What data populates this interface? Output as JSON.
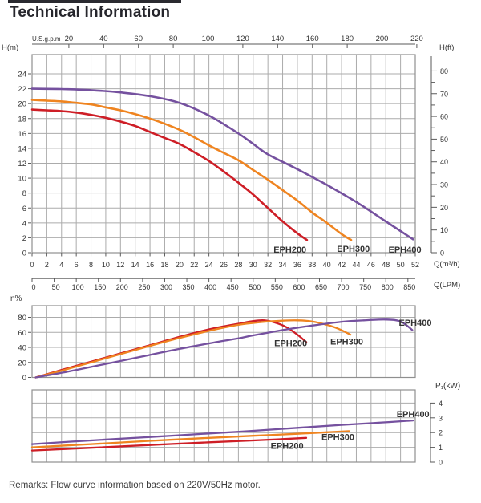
{
  "title": "Technical Information",
  "remarks": "Remarks: Flow curve information based on 220V/50Hz motor.",
  "colors": {
    "eph200": "#ce1e26",
    "eph300": "#ef8420",
    "eph400": "#75519f",
    "grid": "#ababab",
    "border": "#8f8f8f",
    "axis": "#5a5a5a",
    "text": "#333333"
  },
  "chart_data": [
    {
      "id": "head",
      "type": "line",
      "x_axis_top": {
        "label": "U.S.g.p.m",
        "ticks": [
          20,
          40,
          60,
          80,
          100,
          120,
          140,
          160,
          180,
          200,
          220
        ]
      },
      "x_axis_bottom": {
        "label": "Q(m³/h)",
        "min": 0,
        "max": 52,
        "step": 2
      },
      "x_axis_lpm": {
        "label": "Q(LPM)",
        "min": 0,
        "max": 850,
        "step": 50
      },
      "y_axis_left": {
        "label": "H(m)",
        "min": 0,
        "max": 24,
        "step": 2
      },
      "y_axis_right": {
        "label": "H(ft)",
        "min": 0,
        "max": 80,
        "step": 10,
        "minor_step": 5
      },
      "series": [
        {
          "name": "EPH200",
          "color": "eph200",
          "label_at": [
            35.0,
            0.45
          ],
          "points": [
            [
              0,
              19.2
            ],
            [
              2,
              19.1
            ],
            [
              4,
              19.0
            ],
            [
              6,
              18.8
            ],
            [
              8,
              18.5
            ],
            [
              10,
              18.1
            ],
            [
              12,
              17.6
            ],
            [
              14,
              17.0
            ],
            [
              16,
              16.2
            ],
            [
              18,
              15.4
            ],
            [
              20,
              14.6
            ],
            [
              22,
              13.5
            ],
            [
              24,
              12.3
            ],
            [
              26,
              10.9
            ],
            [
              28,
              9.4
            ],
            [
              30,
              7.8
            ],
            [
              32,
              6.0
            ],
            [
              34,
              4.2
            ],
            [
              36,
              2.6
            ],
            [
              37.3,
              1.7
            ]
          ]
        },
        {
          "name": "EPH300",
          "color": "eph300",
          "label_at": [
            43.6,
            0.55
          ],
          "points": [
            [
              0,
              20.5
            ],
            [
              2,
              20.4
            ],
            [
              4,
              20.3
            ],
            [
              6,
              20.1
            ],
            [
              8,
              19.9
            ],
            [
              10,
              19.5
            ],
            [
              12,
              19.1
            ],
            [
              14,
              18.6
            ],
            [
              16,
              18.0
            ],
            [
              18,
              17.3
            ],
            [
              20,
              16.5
            ],
            [
              22,
              15.5
            ],
            [
              24,
              14.4
            ],
            [
              26,
              13.4
            ],
            [
              28,
              12.4
            ],
            [
              30,
              11.1
            ],
            [
              32,
              9.8
            ],
            [
              34,
              8.4
            ],
            [
              36,
              7.0
            ],
            [
              38,
              5.4
            ],
            [
              40,
              4.0
            ],
            [
              42,
              2.5
            ],
            [
              43.3,
              1.7
            ]
          ]
        },
        {
          "name": "EPH400",
          "color": "eph400",
          "label_at": [
            50.6,
            0.45
          ],
          "points": [
            [
              0,
              22.0
            ],
            [
              4,
              21.95
            ],
            [
              8,
              21.8
            ],
            [
              12,
              21.5
            ],
            [
              16,
              21.0
            ],
            [
              20,
              20.1
            ],
            [
              24,
              18.4
            ],
            [
              28,
              16.0
            ],
            [
              30,
              14.6
            ],
            [
              32,
              13.2
            ],
            [
              36,
              11.2
            ],
            [
              40,
              9.1
            ],
            [
              44,
              6.8
            ],
            [
              48,
              4.2
            ],
            [
              51.7,
              1.8
            ]
          ]
        }
      ]
    },
    {
      "id": "eta",
      "type": "line",
      "y_axis_left": {
        "label": "η%",
        "min": 0,
        "max": 80,
        "step": 20
      },
      "series": [
        {
          "name": "EPH200",
          "color": "eph200",
          "label_at": [
            35.1,
            46
          ],
          "points": [
            [
              0.5,
              0
            ],
            [
              4,
              10
            ],
            [
              8,
              21
            ],
            [
              12,
              32
            ],
            [
              16,
              43
            ],
            [
              20,
              54
            ],
            [
              24,
              64
            ],
            [
              26,
              68
            ],
            [
              28,
              71.5
            ],
            [
              30,
              75
            ],
            [
              31.5,
              76
            ],
            [
              33,
              73
            ],
            [
              34.5,
              67
            ],
            [
              36,
              57
            ],
            [
              37.2,
              47
            ]
          ]
        },
        {
          "name": "EPH300",
          "color": "eph300",
          "label_at": [
            42.7,
            48
          ],
          "points": [
            [
              0.5,
              0
            ],
            [
              4,
              9
            ],
            [
              8,
              20
            ],
            [
              12,
              31
            ],
            [
              16,
              42
            ],
            [
              20,
              52.5
            ],
            [
              24,
              62
            ],
            [
              28,
              70
            ],
            [
              31,
              73.5
            ],
            [
              34,
              75.5
            ],
            [
              36,
              76
            ],
            [
              38,
              74.5
            ],
            [
              40,
              70
            ],
            [
              41.5,
              65
            ],
            [
              43.2,
              57
            ]
          ]
        },
        {
          "name": "EPH400",
          "color": "eph400",
          "label_at": [
            52,
            73
          ],
          "points": [
            [
              0.5,
              0
            ],
            [
              5,
              8
            ],
            [
              10,
              18
            ],
            [
              15,
              28
            ],
            [
              20,
              38
            ],
            [
              25,
              47
            ],
            [
              28,
              52
            ],
            [
              30,
              56
            ],
            [
              34,
              63
            ],
            [
              38,
              69
            ],
            [
              42,
              74
            ],
            [
              45,
              76
            ],
            [
              48,
              77
            ],
            [
              50,
              74.5
            ],
            [
              51.6,
              63
            ]
          ]
        }
      ]
    },
    {
      "id": "power",
      "type": "line",
      "y_axis_right": {
        "label": "P₁(kW)",
        "min": 0,
        "max": 4,
        "step": 1
      },
      "series": [
        {
          "name": "EPH200",
          "color": "eph200",
          "label_at": [
            34.6,
            1.12
          ],
          "points": [
            [
              0,
              0.78
            ],
            [
              8,
              0.97
            ],
            [
              16,
              1.16
            ],
            [
              24,
              1.34
            ],
            [
              30,
              1.47
            ],
            [
              34,
              1.56
            ],
            [
              37.2,
              1.64
            ]
          ]
        },
        {
          "name": "EPH300",
          "color": "eph300",
          "label_at": [
            41.5,
            1.72
          ],
          "points": [
            [
              0,
              1.0
            ],
            [
              8,
              1.22
            ],
            [
              16,
              1.44
            ],
            [
              24,
              1.64
            ],
            [
              30,
              1.78
            ],
            [
              36,
              1.92
            ],
            [
              40,
              2.02
            ],
            [
              43,
              2.1
            ]
          ]
        },
        {
          "name": "EPH400",
          "color": "eph400",
          "label_at": [
            51.7,
            3.25
          ],
          "points": [
            [
              0,
              1.22
            ],
            [
              8,
              1.47
            ],
            [
              16,
              1.7
            ],
            [
              24,
              1.94
            ],
            [
              30,
              2.12
            ],
            [
              36,
              2.32
            ],
            [
              42,
              2.52
            ],
            [
              47,
              2.67
            ],
            [
              51.7,
              2.82
            ]
          ]
        }
      ]
    }
  ]
}
